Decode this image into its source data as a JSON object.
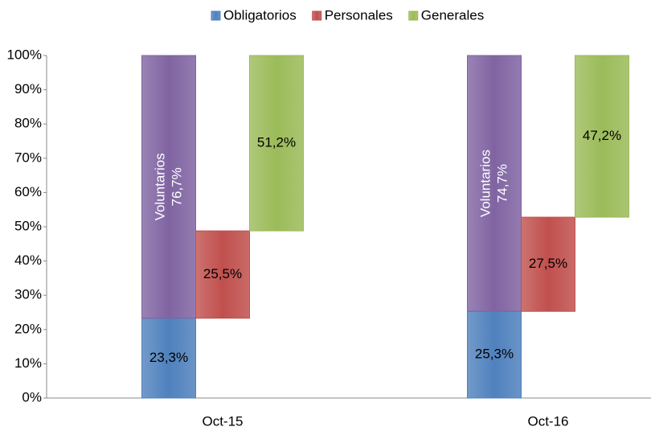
{
  "chart_data": {
    "type": "bar",
    "categories": [
      "Oct-15",
      "Oct-16"
    ],
    "series": [
      {
        "name": "Obligatorios",
        "color": "#4f81bd",
        "values": [
          23.3,
          25.3
        ],
        "value_labels": [
          "23,3%",
          "25,3%"
        ],
        "stack_on": []
      },
      {
        "name": "Voluntarios",
        "color": "#8064a2",
        "values": [
          76.7,
          74.7
        ],
        "value_labels": [
          "76,7%",
          "74,7%"
        ],
        "stack_on": [
          "Obligatorios"
        ],
        "legend": false
      },
      {
        "name": "Personales",
        "color": "#c0504d",
        "values": [
          25.5,
          27.5
        ],
        "value_labels": [
          "25,5%",
          "27,5%"
        ],
        "stack_on": [
          "Obligatorios"
        ]
      },
      {
        "name": "Generales",
        "color": "#9bbb59",
        "values": [
          51.2,
          47.2
        ],
        "value_labels": [
          "51,2%",
          "47,2%"
        ],
        "stack_on": [
          "Obligatorios",
          "Personales"
        ]
      }
    ],
    "ylim": [
      0,
      100
    ],
    "yticks": [
      {
        "value": 0,
        "label": "0%"
      },
      {
        "value": 10,
        "label": "10%"
      },
      {
        "value": 20,
        "label": "20%"
      },
      {
        "value": 30,
        "label": "30%"
      },
      {
        "value": 40,
        "label": "40%"
      },
      {
        "value": 50,
        "label": "50%"
      },
      {
        "value": 60,
        "label": "60%"
      },
      {
        "value": 70,
        "label": "70%"
      },
      {
        "value": 80,
        "label": "80%"
      },
      {
        "value": 90,
        "label": "90%"
      },
      {
        "value": 100,
        "label": "100%"
      }
    ],
    "legend": "top",
    "grid": false
  }
}
